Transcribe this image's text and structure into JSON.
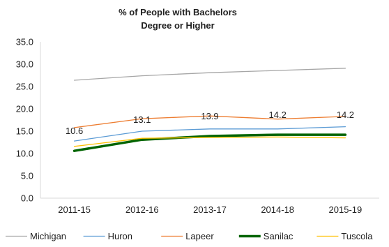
{
  "chart_data": {
    "type": "line",
    "title_lines": [
      "% of People with Bachelors",
      "Degree or Higher"
    ],
    "categories": [
      "2011-15",
      "2012-16",
      "2013-17",
      "2014-18",
      "2015-19"
    ],
    "ylim": [
      0,
      35
    ],
    "y_ticks": [
      "0.0",
      "5.0",
      "10.0",
      "15.0",
      "20.0",
      "25.0",
      "30.0",
      "35.0"
    ],
    "grid": false,
    "legend_position": "bottom",
    "series": [
      {
        "name": "Michigan",
        "values": [
          26.4,
          27.4,
          28.1,
          28.6,
          29.1
        ],
        "color": "#a6a6a6",
        "width": 1.3
      },
      {
        "name": "Huron",
        "values": [
          12.8,
          15.0,
          15.5,
          15.5,
          16.0
        ],
        "color": "#5b9bd5",
        "width": 1.3
      },
      {
        "name": "Lapeer",
        "values": [
          15.8,
          17.8,
          18.4,
          17.7,
          18.3
        ],
        "color": "#ed7d31",
        "width": 1.3
      },
      {
        "name": "Sanilac",
        "values": [
          10.6,
          13.1,
          13.9,
          14.2,
          14.2
        ],
        "color": "#006400",
        "width": 3.5
      },
      {
        "name": "Tuscola",
        "values": [
          11.6,
          13.4,
          13.6,
          13.7,
          13.5
        ],
        "color": "#ffc000",
        "width": 1.3
      }
    ],
    "data_labels": {
      "series": "Sanilac",
      "values": [
        "10.6",
        "13.1",
        "13.9",
        "14.2",
        "14.2"
      ]
    }
  }
}
